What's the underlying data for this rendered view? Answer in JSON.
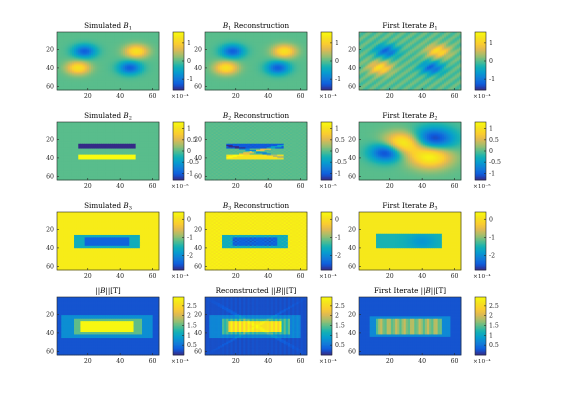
{
  "chart_data": [
    {
      "type": "heatmap",
      "pattern": "B1",
      "style": "smooth",
      "title_parts": [
        "Simulated ",
        "B",
        "1"
      ],
      "xticks": [
        20,
        40,
        60
      ],
      "yticks": [
        20,
        40,
        60
      ],
      "xlim": [
        1,
        64
      ],
      "ylim": [
        1,
        64
      ],
      "clim": [
        -1.6,
        1.6
      ],
      "cbar_ticks": [
        1,
        0,
        -1
      ],
      "cbar_exponent": "×10⁻⁴"
    },
    {
      "type": "heatmap",
      "pattern": "B1",
      "style": "smooth",
      "title_parts": [
        "",
        "B",
        "1",
        " Reconstruction"
      ],
      "xticks": [
        20,
        40,
        60
      ],
      "yticks": [
        20,
        40,
        60
      ],
      "xlim": [
        1,
        64
      ],
      "ylim": [
        1,
        64
      ],
      "clim": [
        -1.6,
        1.6
      ],
      "cbar_ticks": [
        1,
        0,
        -1
      ],
      "cbar_exponent": "×10⁻⁴"
    },
    {
      "type": "heatmap",
      "pattern": "B1",
      "style": "iterate",
      "title_parts": [
        "First Iterate ",
        "B",
        "1"
      ],
      "xticks": [
        20,
        40,
        60
      ],
      "yticks": [
        20,
        40,
        60
      ],
      "xlim": [
        1,
        64
      ],
      "ylim": [
        1,
        64
      ],
      "clim": [
        -1.6,
        1.6
      ],
      "cbar_ticks": [
        1,
        0,
        -1
      ],
      "cbar_exponent": "×10⁻⁴"
    },
    {
      "type": "heatmap",
      "pattern": "B2",
      "style": "smooth",
      "title_parts": [
        "Simulated ",
        "B",
        "2"
      ],
      "xticks": [
        20,
        40,
        60
      ],
      "yticks": [
        20,
        40,
        60
      ],
      "xlim": [
        1,
        64
      ],
      "ylim": [
        1,
        64
      ],
      "clim": [
        -1.3,
        1.3
      ],
      "cbar_ticks": [
        1,
        0.5,
        0,
        -0.5,
        -1
      ],
      "cbar_exponent": "×10⁻⁵"
    },
    {
      "type": "heatmap",
      "pattern": "B2",
      "style": "recon",
      "title_parts": [
        "",
        "B",
        "2",
        " Reconstruction"
      ],
      "xticks": [
        20,
        40,
        60
      ],
      "yticks": [
        20,
        40,
        60
      ],
      "xlim": [
        1,
        64
      ],
      "ylim": [
        1,
        64
      ],
      "clim": [
        -1.3,
        1.3
      ],
      "cbar_ticks": [
        1,
        0.5,
        0,
        -0.5,
        -1
      ],
      "cbar_exponent": "×10⁻⁵"
    },
    {
      "type": "heatmap",
      "pattern": "B2",
      "style": "iterate",
      "title_parts": [
        "First Iterate ",
        "B",
        "2"
      ],
      "xticks": [
        20,
        40,
        60
      ],
      "yticks": [
        20,
        40,
        60
      ],
      "xlim": [
        1,
        64
      ],
      "ylim": [
        1,
        64
      ],
      "clim": [
        -1.3,
        1.3
      ],
      "cbar_ticks": [
        1,
        0.5,
        0,
        -0.5,
        -1
      ],
      "cbar_exponent": "×10⁻⁵"
    },
    {
      "type": "heatmap",
      "pattern": "B3",
      "style": "smooth",
      "title_parts": [
        "Simulated ",
        "B",
        "3"
      ],
      "xticks": [
        20,
        40,
        60
      ],
      "yticks": [
        20,
        40,
        60
      ],
      "xlim": [
        1,
        64
      ],
      "ylim": [
        1,
        64
      ],
      "clim": [
        -2.8,
        0.4
      ],
      "cbar_ticks": [
        0,
        -1,
        -2
      ],
      "cbar_exponent": "×10⁻⁴"
    },
    {
      "type": "heatmap",
      "pattern": "B3",
      "style": "recon",
      "title_parts": [
        "",
        "B",
        "3",
        " Reconstruction"
      ],
      "xticks": [
        20,
        40,
        60
      ],
      "yticks": [
        20,
        40,
        60
      ],
      "xlim": [
        1,
        64
      ],
      "ylim": [
        1,
        64
      ],
      "clim": [
        -2.8,
        0.4
      ],
      "cbar_ticks": [
        0,
        -1,
        -2
      ],
      "cbar_exponent": "×10⁻⁴"
    },
    {
      "type": "heatmap",
      "pattern": "B3",
      "style": "iterate",
      "title_parts": [
        "First Iterate ",
        "B",
        "3"
      ],
      "xticks": [
        20,
        40,
        60
      ],
      "yticks": [
        20,
        40,
        60
      ],
      "xlim": [
        1,
        64
      ],
      "ylim": [
        1,
        64
      ],
      "clim": [
        -2.8,
        0.4
      ],
      "cbar_ticks": [
        0,
        -1,
        -2
      ],
      "cbar_exponent": "×10⁻⁴"
    },
    {
      "type": "heatmap",
      "pattern": "mag",
      "style": "smooth",
      "title_parts": [
        "||",
        "B",
        "||[T]"
      ],
      "xticks": [
        20,
        40,
        60
      ],
      "yticks": [
        20,
        40,
        60
      ],
      "xlim": [
        1,
        64
      ],
      "ylim": [
        1,
        64
      ],
      "clim": [
        0,
        2.95
      ],
      "cbar_ticks": [
        2.5,
        2,
        1.5,
        1,
        0.5
      ],
      "cbar_exponent": "×10⁻⁴"
    },
    {
      "type": "heatmap",
      "pattern": "mag",
      "style": "recon",
      "title_parts": [
        "Reconstructed ||",
        "B",
        "||[T]"
      ],
      "xticks": [
        20,
        40,
        60
      ],
      "yticks": [
        20,
        40,
        60
      ],
      "xlim": [
        1,
        64
      ],
      "ylim": [
        1,
        64
      ],
      "clim": [
        0,
        2.95
      ],
      "cbar_ticks": [
        2.5,
        2,
        1.5,
        1,
        0.5
      ],
      "cbar_exponent": "×10⁻⁴"
    },
    {
      "type": "heatmap",
      "pattern": "mag",
      "style": "iterate",
      "title_parts": [
        "First Iterate ||",
        "B",
        "||[T]"
      ],
      "xticks": [
        20,
        40,
        60
      ],
      "yticks": [
        20,
        40,
        60
      ],
      "xlim": [
        1,
        64
      ],
      "ylim": [
        1,
        64
      ],
      "clim": [
        0,
        2.95
      ],
      "cbar_ticks": [
        2.5,
        2,
        1.5,
        1,
        0.5
      ],
      "cbar_exponent": "×10⁻⁴"
    }
  ]
}
